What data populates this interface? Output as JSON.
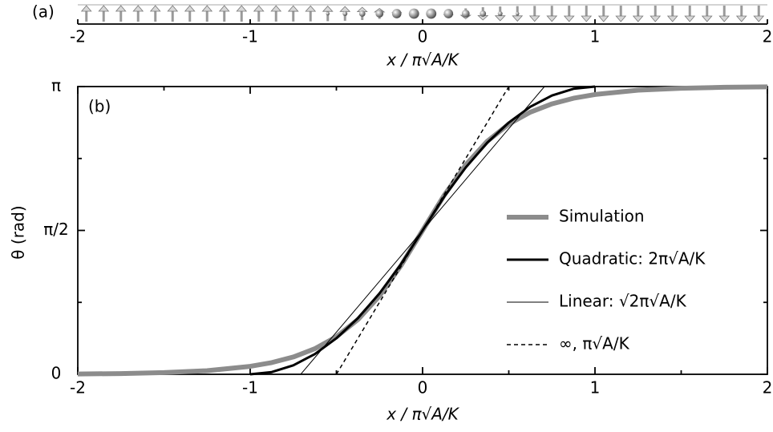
{
  "chart_data": [
    {
      "type": "spin-chain",
      "panel_label": "(a)",
      "xlabel": "x / π√A/K",
      "xlim": [
        -2,
        2
      ],
      "xticks": [
        -2,
        -1,
        0,
        1,
        2
      ],
      "color": "#9a9a9a",
      "x": [
        -1.95,
        -1.85,
        -1.75,
        -1.65,
        -1.55,
        -1.45,
        -1.35,
        -1.25,
        -1.15,
        -1.05,
        -0.95,
        -0.85,
        -0.75,
        -0.65,
        -0.55,
        -0.45,
        -0.35,
        -0.25,
        -0.15,
        -0.05,
        0.05,
        0.15,
        0.25,
        0.35,
        0.45,
        0.55,
        0.65,
        0.75,
        0.85,
        0.95,
        1.05,
        1.15,
        1.25,
        1.35,
        1.45,
        1.55,
        1.65,
        1.75,
        1.85,
        1.95
      ],
      "values": [
        0.0044,
        0.006,
        0.0082,
        0.0112,
        0.0154,
        0.021,
        0.0288,
        0.0394,
        0.054,
        0.0738,
        0.101,
        0.1382,
        0.189,
        0.258,
        0.3518,
        0.477,
        0.6428,
        0.8557,
        1.1166,
        1.4142,
        1.7274,
        2.025,
        2.2859,
        2.4988,
        2.6646,
        2.7898,
        2.8836,
        2.9526,
        3.0034,
        3.0406,
        3.0678,
        3.0876,
        3.1022,
        3.1128,
        3.1206,
        3.1262,
        3.1304,
        3.1334,
        3.1356,
        3.1372
      ]
    },
    {
      "type": "line",
      "panel_label": "(b)",
      "xlabel": "x / π√A/K",
      "ylabel": "θ (rad)",
      "xlim": [
        -2,
        2
      ],
      "ylim": [
        0,
        3.1416
      ],
      "xticks": [
        -2,
        -1,
        0,
        1,
        2
      ],
      "xminor": [
        -1.5,
        -0.5,
        0.5,
        1.5
      ],
      "yticks": [
        0,
        {
          "value": 1.5708,
          "label": "π/2"
        },
        {
          "value": 3.1416,
          "label": "π"
        }
      ],
      "yminor": [
        0.7854,
        2.3562
      ],
      "series": [
        {
          "name": "Simulation",
          "color": "#8c8c8c",
          "width": 6,
          "dash": "none",
          "x": [
            -2,
            -1.75,
            -1.5,
            -1.25,
            -1,
            -0.875,
            -0.75,
            -0.625,
            -0.5,
            -0.375,
            -0.25,
            -0.125,
            0,
            0.125,
            0.25,
            0.375,
            0.5,
            0.625,
            0.75,
            0.875,
            1,
            1.25,
            1.5,
            1.75,
            2
          ],
          "values": [
            0.0037,
            0.0082,
            0.018,
            0.0394,
            0.0864,
            0.1278,
            0.189,
            0.2788,
            0.4098,
            0.5978,
            0.8557,
            1.1876,
            1.5708,
            1.954,
            2.2859,
            2.5438,
            2.7318,
            2.8628,
            2.9526,
            3.0138,
            3.0552,
            3.1022,
            3.1236,
            3.1334,
            3.1379
          ]
        },
        {
          "name": "Quadratic: 2π√A/K",
          "color": "#000000",
          "width": 3,
          "dash": "none",
          "x": [
            -1,
            -0.875,
            -0.75,
            -0.625,
            -0.5,
            -0.375,
            -0.25,
            -0.125,
            0,
            0.125,
            0.25,
            0.375,
            0.5,
            0.625,
            0.75,
            0.875,
            1
          ],
          "values": [
            0,
            0.0245,
            0.0982,
            0.2209,
            0.3927,
            0.6136,
            0.8836,
            1.2026,
            1.5708,
            1.939,
            2.258,
            2.528,
            2.7489,
            2.9207,
            3.0434,
            3.1171,
            3.1416
          ]
        },
        {
          "name": "Linear: √2π√A/K",
          "color": "#000000",
          "width": 1,
          "dash": "none",
          "x": [
            -0.707,
            0.707
          ],
          "values": [
            0,
            3.1416
          ]
        },
        {
          "name": "∞, π√A/K",
          "color": "#000000",
          "width": 1.5,
          "dash": "5,4",
          "x": [
            -0.5,
            0.5
          ],
          "values": [
            0,
            3.1416
          ]
        }
      ]
    }
  ]
}
